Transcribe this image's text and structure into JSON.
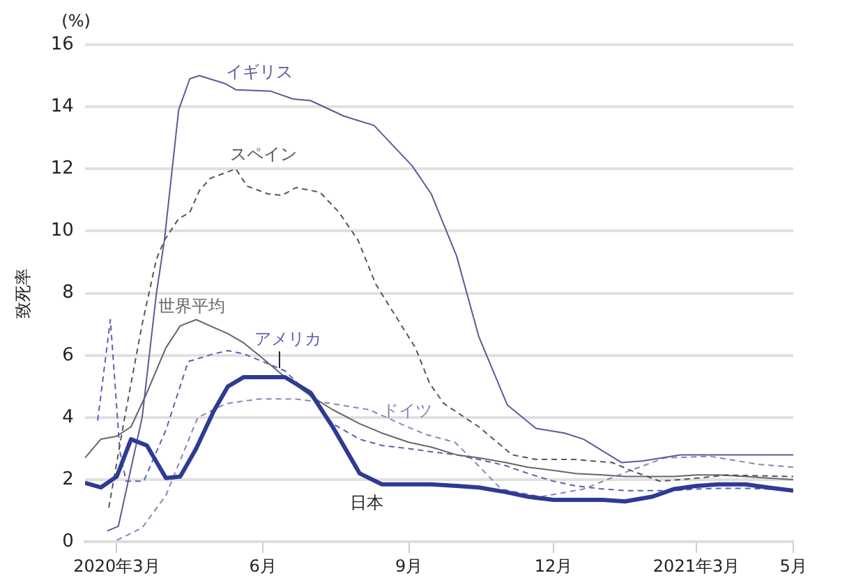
{
  "chart_data": {
    "type": "line",
    "ylabel": "致死率",
    "annotations": [
      "(%)"
    ],
    "x": [
      "2020-02-10",
      "2020-02-20",
      "2020-03-01",
      "2020-03-10",
      "2020-03-20",
      "2020-04-01",
      "2020-04-10",
      "2020-04-20",
      "2020-05-01",
      "2020-05-10",
      "2020-05-20",
      "2020-06-01",
      "2020-06-15",
      "2020-07-01",
      "2020-07-15",
      "2020-08-01",
      "2020-08-15",
      "2020-09-01",
      "2020-09-15",
      "2020-10-01",
      "2020-10-15",
      "2020-11-01",
      "2020-11-15",
      "2020-12-01",
      "2020-12-15",
      "2021-01-01",
      "2021-01-15",
      "2021-02-01",
      "2021-02-15",
      "2021-03-01",
      "2021-03-15",
      "2021-04-01",
      "2021-04-15",
      "2021-05-01"
    ],
    "series": [
      {
        "name": "日本",
        "color": "#2e3a94",
        "line_style": "solid",
        "values": [
          1.9,
          1.75,
          2.1,
          3.3,
          3.1,
          2.05,
          2.1,
          3.0,
          4.2,
          5.0,
          5.3,
          5.3,
          5.3,
          4.8,
          3.7,
          2.2,
          1.85,
          1.85,
          1.85,
          1.8,
          1.75,
          1.6,
          1.45,
          1.35,
          1.35,
          1.35,
          1.3,
          1.45,
          1.7,
          1.8,
          1.85,
          1.85,
          1.75,
          1.65
        ]
      },
      {
        "name": "イギリス",
        "color": "#5a5a9a",
        "line_style": "solid",
        "x": [
          "2020-02-24",
          "2020-03-02",
          "2020-03-17",
          "2020-03-26",
          "2020-03-31",
          "2020-04-09",
          "2020-04-16",
          "2020-04-22",
          "2020-05-08",
          "2020-05-15",
          "2020-06-06",
          "2020-06-20",
          "2020-07-01",
          "2020-07-22",
          "2020-08-10",
          "2020-09-03",
          "2020-09-15",
          "2020-10-01",
          "2020-10-15",
          "2020-11-02",
          "2020-11-20",
          "2020-12-08",
          "2020-12-20",
          "2021-01-13",
          "2021-01-26",
          "2021-02-19",
          "2021-03-08",
          "2021-05-01"
        ],
        "values": [
          0.35,
          0.5,
          4.0,
          8.0,
          9.7,
          13.9,
          14.9,
          15.0,
          14.75,
          14.55,
          14.5,
          14.25,
          14.2,
          13.7,
          13.4,
          12.1,
          11.2,
          9.2,
          6.6,
          4.4,
          3.65,
          3.5,
          3.3,
          2.55,
          2.6,
          2.8,
          2.8,
          2.8
        ]
      },
      {
        "name": "スペイン",
        "color": "#555555",
        "line_style": "dashed",
        "x": [
          "2020-02-25",
          "2020-03-06",
          "2020-03-17",
          "2020-03-26",
          "2020-03-31",
          "2020-04-09",
          "2020-04-16",
          "2020-04-22",
          "2020-04-29",
          "2020-05-15",
          "2020-05-22",
          "2020-06-04",
          "2020-06-13",
          "2020-06-22",
          "2020-07-07",
          "2020-07-19",
          "2020-07-31",
          "2020-08-11",
          "2020-09-05",
          "2020-09-14",
          "2020-09-23",
          "2020-10-15",
          "2020-11-05",
          "2020-11-20",
          "2020-12-14",
          "2021-01-07",
          "2021-01-21",
          "2021-02-06",
          "2021-03-02",
          "2021-03-20",
          "2021-05-01"
        ],
        "values": [
          1.1,
          4.0,
          7.0,
          9.1,
          9.7,
          10.4,
          10.6,
          11.3,
          11.7,
          12.0,
          11.45,
          11.2,
          11.15,
          11.4,
          11.25,
          10.6,
          9.7,
          8.3,
          6.25,
          5.1,
          4.45,
          3.7,
          2.8,
          2.65,
          2.65,
          2.55,
          2.25,
          1.95,
          2.05,
          2.15,
          2.1
        ]
      },
      {
        "name": "世界平均",
        "color": "#666666",
        "line_style": "solid",
        "values": [
          2.7,
          3.3,
          3.4,
          3.7,
          4.8,
          6.25,
          6.95,
          7.15,
          6.9,
          6.7,
          6.4,
          5.9,
          5.3,
          4.7,
          4.25,
          3.8,
          3.5,
          3.2,
          3.05,
          2.8,
          2.7,
          2.55,
          2.4,
          2.3,
          2.2,
          2.15,
          2.1,
          2.1,
          2.1,
          2.15,
          2.15,
          2.1,
          2.05,
          2.0
        ]
      },
      {
        "name": "アメリカ",
        "color": "#5b5fb5",
        "line_style": "dashed",
        "x": [
          "2020-02-18",
          "2020-02-26",
          "2020-03-03",
          "2020-03-07",
          "2020-03-18",
          "2020-04-01",
          "2020-04-15",
          "2020-05-01",
          "2020-05-10",
          "2020-05-20",
          "2020-06-01",
          "2020-06-15",
          "2020-07-01",
          "2020-07-15",
          "2020-08-01",
          "2020-08-15",
          "2020-09-01",
          "2020-09-15",
          "2020-10-01",
          "2020-10-15",
          "2020-11-01",
          "2020-11-15",
          "2020-12-01",
          "2020-12-15",
          "2021-01-01",
          "2021-01-15",
          "2021-02-01",
          "2021-02-15",
          "2021-03-01",
          "2021-03-15",
          "2021-04-01",
          "2021-04-15",
          "2021-05-01"
        ],
        "values": [
          3.9,
          7.15,
          2.9,
          1.95,
          1.95,
          3.6,
          5.8,
          6.05,
          6.15,
          6.05,
          5.8,
          5.5,
          4.7,
          3.8,
          3.3,
          3.1,
          3.0,
          2.9,
          2.8,
          2.65,
          2.45,
          2.2,
          1.95,
          1.8,
          1.7,
          1.65,
          1.65,
          1.65,
          1.7,
          1.72,
          1.72,
          1.7,
          1.7
        ]
      },
      {
        "name": "ドイツ",
        "color": "#8585bb",
        "line_style": "dashed",
        "x": [
          "2020-03-01",
          "2020-03-17",
          "2020-04-01",
          "2020-04-21",
          "2020-05-09",
          "2020-05-30",
          "2020-06-21",
          "2020-07-14",
          "2020-08-07",
          "2020-08-31",
          "2020-09-12",
          "2020-09-30",
          "2020-10-09",
          "2020-10-29",
          "2020-11-23",
          "2020-12-20",
          "2021-01-16",
          "2021-02-09",
          "2021-03-10",
          "2021-04-08",
          "2021-05-01"
        ],
        "values": [
          0.05,
          0.45,
          1.5,
          4.0,
          4.45,
          4.6,
          4.6,
          4.45,
          4.25,
          3.7,
          3.45,
          3.2,
          2.75,
          1.7,
          1.45,
          1.7,
          2.25,
          2.7,
          2.75,
          2.5,
          2.4
        ]
      }
    ],
    "xlim": [
      "2020-02-10",
      "2021-05-01"
    ],
    "xticks": [
      {
        "value": "2020-03-01",
        "label": "2020年3月"
      },
      {
        "value": "2020-06-01",
        "label": "6月"
      },
      {
        "value": "2020-09-01",
        "label": "9月"
      },
      {
        "value": "2020-12-01",
        "label": "12月"
      },
      {
        "value": "2021-03-01",
        "label": "2021年3月"
      },
      {
        "value": "2021-05-01",
        "label": "5月"
      }
    ],
    "ylim": [
      0,
      16
    ],
    "yticks": [
      0,
      2,
      4,
      6,
      8,
      10,
      12,
      14,
      16
    ],
    "grid": "y",
    "legend": false,
    "marker": "none"
  }
}
